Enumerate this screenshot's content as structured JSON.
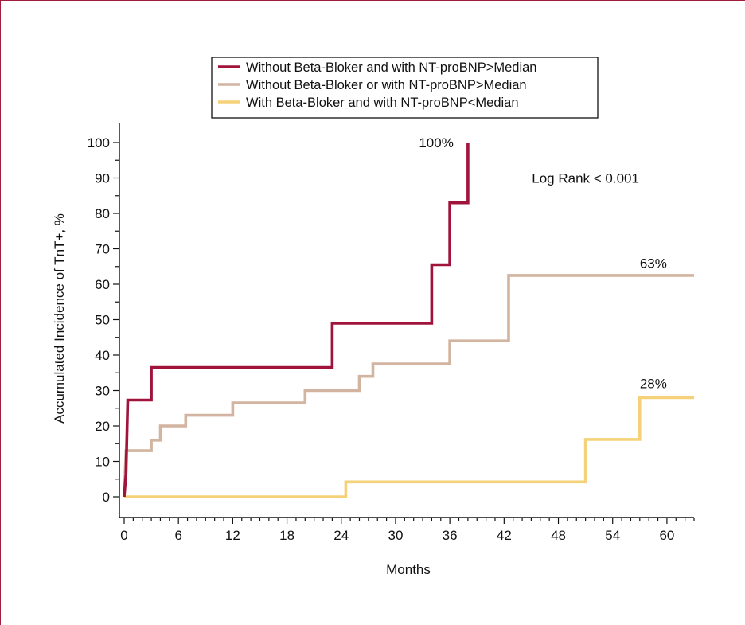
{
  "chart_data": {
    "type": "line",
    "step": true,
    "xlabel": "Months",
    "ylabel": "Accumulated Incidence of TnT+, %",
    "xlim": [
      0,
      63
    ],
    "ylim": [
      0,
      100
    ],
    "x_ticks": [
      0,
      6,
      12,
      18,
      24,
      30,
      36,
      42,
      48,
      54,
      60
    ],
    "y_ticks": [
      0,
      10,
      20,
      30,
      40,
      50,
      60,
      70,
      80,
      90,
      100
    ],
    "legend_position": "top-center",
    "colors": {
      "dark_red": "#a0143c",
      "tan": "#d2b4a0",
      "yellow": "#f5d27a",
      "frame": "#a01e3c"
    },
    "series": [
      {
        "name": "Without Beta-Bloker and with NT-proBNP>Median",
        "color": "#a0143c",
        "points": [
          [
            0,
            0
          ],
          [
            0.2,
            6.5
          ],
          [
            0.4,
            27.3
          ],
          [
            3,
            27.3
          ],
          [
            3,
            36.5
          ],
          [
            23,
            36.5
          ],
          [
            23,
            49
          ],
          [
            34,
            49
          ],
          [
            34,
            65.5
          ],
          [
            36,
            65.5
          ],
          [
            36,
            83
          ],
          [
            38,
            83
          ],
          [
            38,
            100
          ]
        ]
      },
      {
        "name": "Without Beta-Bloker or with NT-proBNP>Median",
        "color": "#d2b4a0",
        "points": [
          [
            0,
            0
          ],
          [
            0.2,
            13
          ],
          [
            3,
            13
          ],
          [
            3,
            16
          ],
          [
            4,
            16
          ],
          [
            4,
            20
          ],
          [
            6.8,
            20
          ],
          [
            6.8,
            23
          ],
          [
            12,
            23
          ],
          [
            12,
            26.5
          ],
          [
            20,
            26.5
          ],
          [
            20,
            30
          ],
          [
            26,
            30
          ],
          [
            26,
            34
          ],
          [
            27.5,
            34
          ],
          [
            27.5,
            37.5
          ],
          [
            36,
            37.5
          ],
          [
            36,
            44
          ],
          [
            42.5,
            44
          ],
          [
            42.5,
            62.5
          ],
          [
            63,
            62.5
          ]
        ]
      },
      {
        "name": "With Beta-Bloker and with NT-proBNP<Median",
        "color": "#f5d27a",
        "points": [
          [
            0,
            0
          ],
          [
            24.5,
            0
          ],
          [
            24.5,
            4.2
          ],
          [
            51,
            4.2
          ],
          [
            51,
            16.2
          ],
          [
            57,
            16.2
          ],
          [
            57,
            28
          ],
          [
            63,
            28
          ]
        ]
      }
    ],
    "annotations": [
      {
        "text": "100%",
        "x": 34.5,
        "y": 100
      },
      {
        "text": "Log Rank < 0.001",
        "x": 51,
        "y": 90
      },
      {
        "text": "63%",
        "x": 58.5,
        "y": 66
      },
      {
        "text": "28%",
        "x": 58.5,
        "y": 32
      }
    ]
  }
}
